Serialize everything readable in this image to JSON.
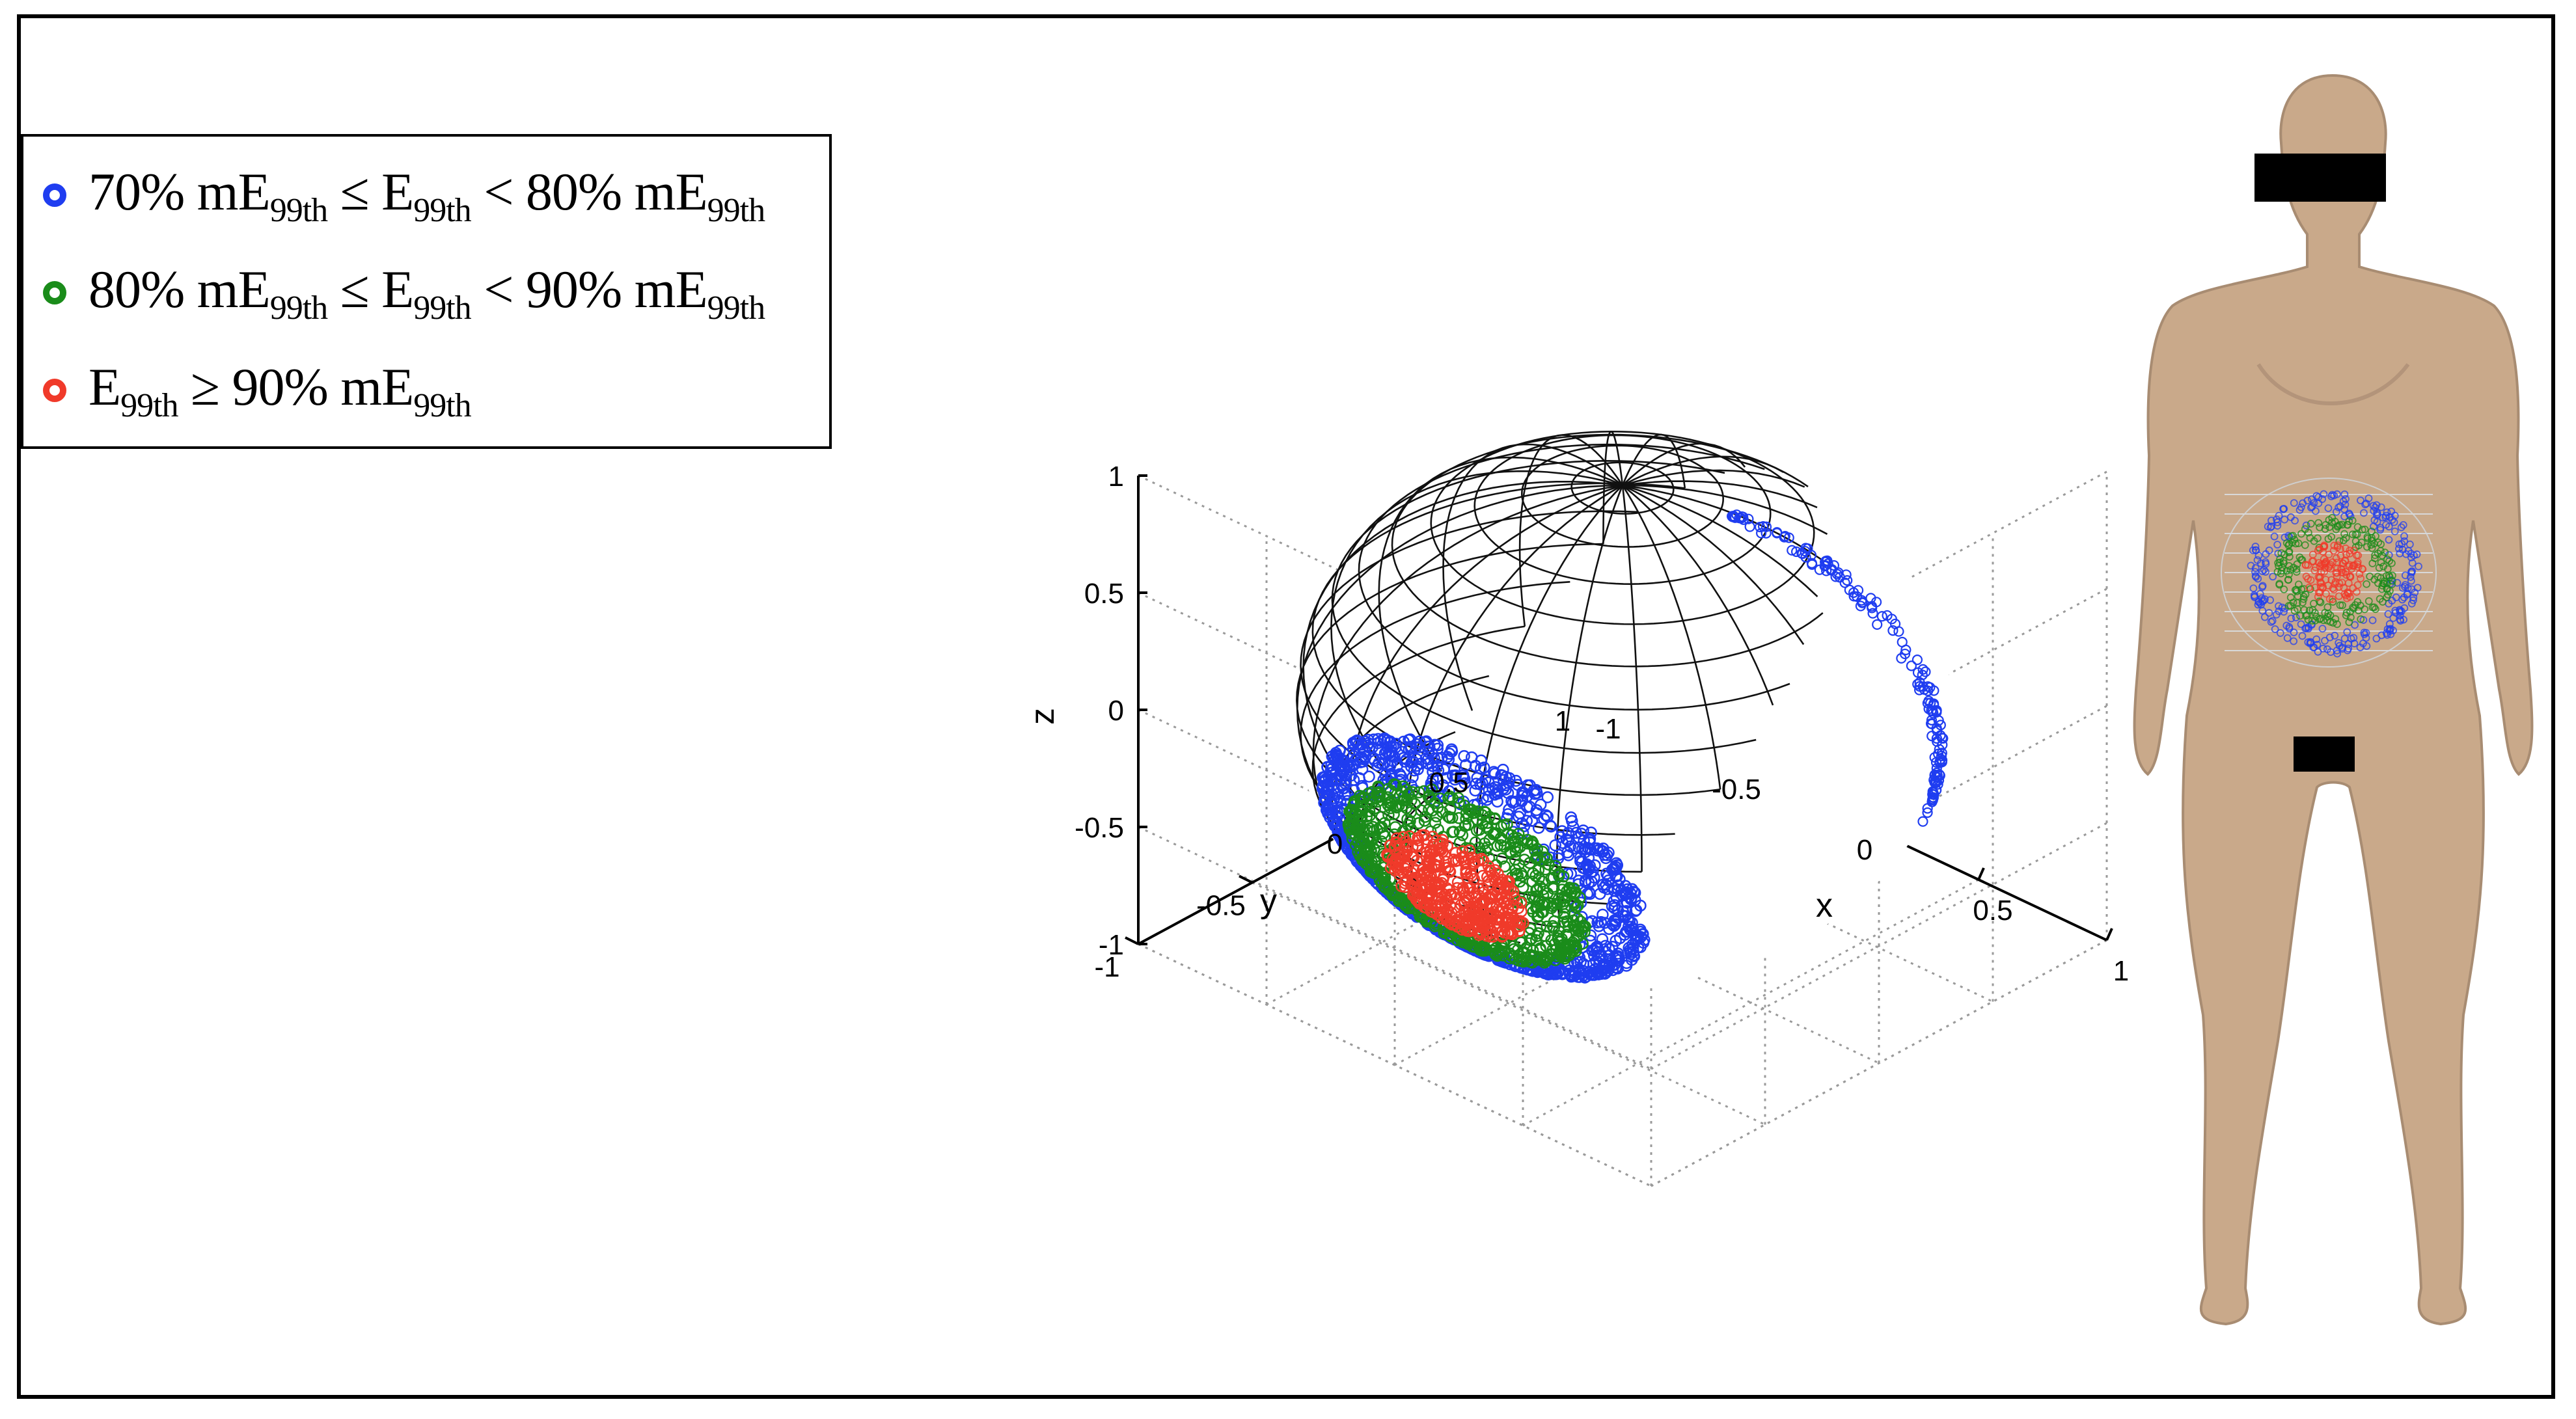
{
  "legend": {
    "items": [
      {
        "pre": "70% mE",
        "sub1": "99th",
        "mid": " ≤ E",
        "sub2": "99th",
        "post": " < 80% mE",
        "sub3": "99th",
        "color": "#1f3df0"
      },
      {
        "pre": "80% mE",
        "sub1": "99th",
        "mid": " ≤ E",
        "sub2": "99th",
        "post": " < 90% mE",
        "sub3": "99th",
        "color": "#1a8c1a"
      },
      {
        "pre": "E",
        "sub1": "99th",
        "mid": " ≥ 90% mE",
        "sub2": "99th",
        "post": "",
        "sub3": "",
        "color": "#f03a2a"
      }
    ]
  },
  "chart_data": {
    "type": "scatter",
    "title": "",
    "projection": "3d",
    "grid": true,
    "xlabel": "x",
    "ylabel": "y",
    "zlabel": "z",
    "xlim": [
      -1,
      1
    ],
    "ylim": [
      -1,
      1
    ],
    "zlim": [
      -1,
      1
    ],
    "x_ticks": [
      "-1",
      "-0.5",
      "0",
      "0.5",
      "1"
    ],
    "y_ticks": [
      "-1",
      "-0.5",
      "0",
      "0.5",
      "1"
    ],
    "z_ticks": [
      "-1",
      "-0.5",
      "0",
      "0.5",
      "1"
    ],
    "surface": "unit sphere wireframe",
    "series": [
      {
        "name": "70% mE99th ≤ E99th < 80% mE99th",
        "color": "#1f3df0",
        "region": "outer ring of spot centred near y=1 on sphere surface"
      },
      {
        "name": "80% mE99th ≤ E99th < 90% mE99th",
        "color": "#1a8c1a",
        "region": "middle ring of spot"
      },
      {
        "name": "E99th ≥ 90% mE99th",
        "color": "#f03a2a",
        "region": "centre of spot"
      }
    ]
  },
  "body_image": {
    "description_icon": "female-body-model-icon",
    "skin_color": "#c9a98a"
  }
}
